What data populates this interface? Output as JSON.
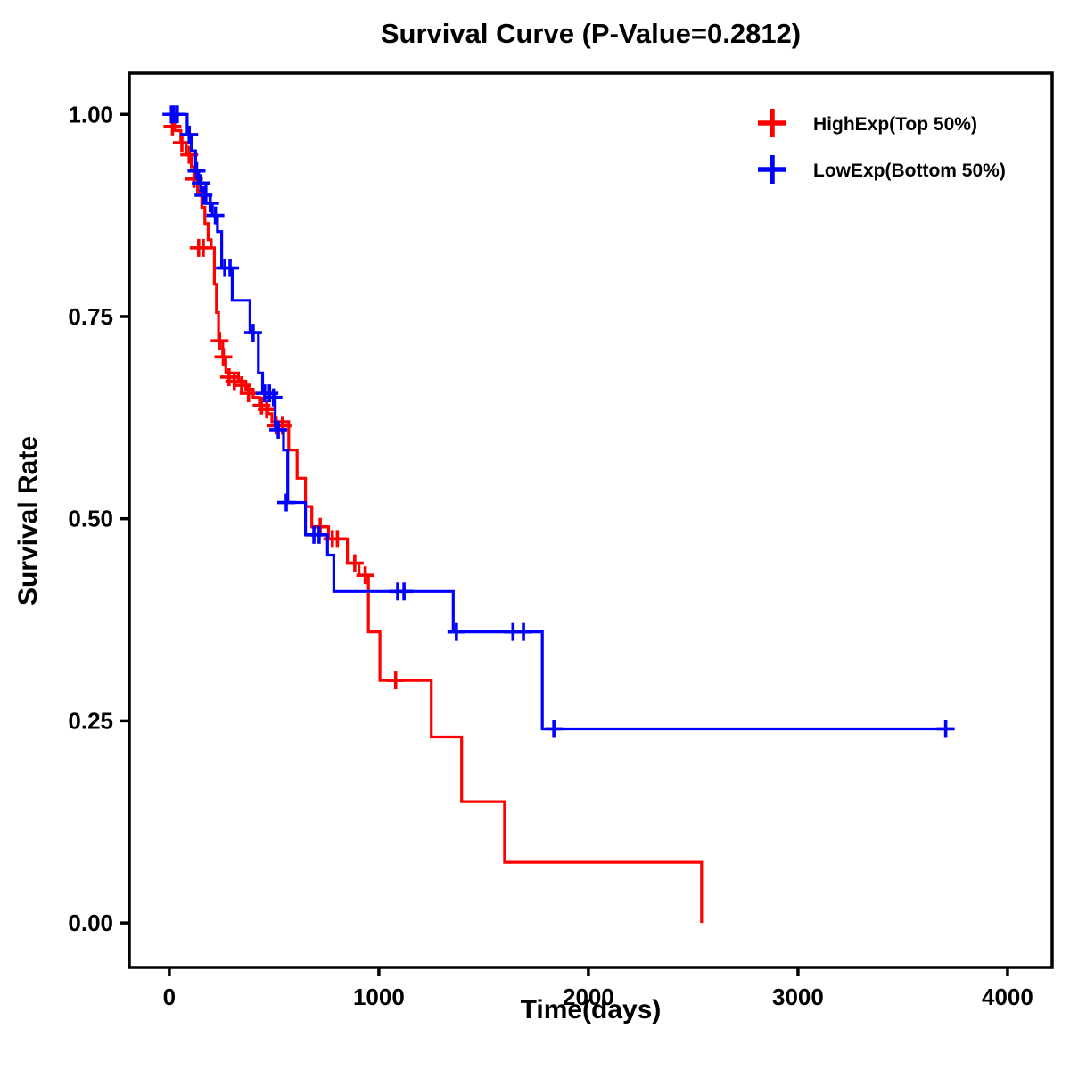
{
  "chart_data": {
    "type": "line",
    "subtype": "kaplan-meier-step",
    "title": "Survival Curve (P-Value=0.2812)",
    "xlabel": "Time(days)",
    "ylabel": "Survival Rate",
    "xlim": [
      -191,
      4213
    ],
    "ylim": [
      -0.055,
      1.051
    ],
    "xticks": [
      0,
      1000,
      2000,
      3000,
      4000
    ],
    "xtick_labels": [
      "0",
      "1000",
      "2000",
      "3000",
      "4000"
    ],
    "yticks": [
      0.0,
      0.25,
      0.5,
      0.75,
      1.0
    ],
    "ytick_labels": [
      "0.00",
      "0.25",
      "0.50",
      "0.75",
      "1.00"
    ],
    "grid": false,
    "legend": {
      "position": "top-right",
      "entries": [
        {
          "label": "HighExp(Top 50%)",
          "color": "#FF0000"
        },
        {
          "label": "LowExp(Bottom 50%)",
          "color": "#0000FF"
        }
      ]
    },
    "series": [
      {
        "name": "HighExp(Top 50%)",
        "color": "#FF0000",
        "steps": [
          [
            0,
            1.0
          ],
          [
            25,
            0.98
          ],
          [
            55,
            0.965
          ],
          [
            80,
            0.95
          ],
          [
            105,
            0.935
          ],
          [
            120,
            0.92
          ],
          [
            135,
            0.905
          ],
          [
            155,
            0.885
          ],
          [
            170,
            0.865
          ],
          [
            185,
            0.845
          ],
          [
            200,
            0.835
          ],
          [
            215,
            0.79
          ],
          [
            225,
            0.755
          ],
          [
            235,
            0.72
          ],
          [
            255,
            0.7
          ],
          [
            270,
            0.68
          ],
          [
            330,
            0.67
          ],
          [
            365,
            0.66
          ],
          [
            400,
            0.65
          ],
          [
            430,
            0.64
          ],
          [
            470,
            0.63
          ],
          [
            490,
            0.62
          ],
          [
            570,
            0.585
          ],
          [
            610,
            0.55
          ],
          [
            650,
            0.515
          ],
          [
            680,
            0.49
          ],
          [
            760,
            0.475
          ],
          [
            850,
            0.445
          ],
          [
            905,
            0.43
          ],
          [
            950,
            0.36
          ],
          [
            1005,
            0.3
          ],
          [
            1250,
            0.23
          ],
          [
            1395,
            0.15
          ],
          [
            1600,
            0.075
          ],
          [
            2540,
            0.0
          ]
        ],
        "censors": [
          [
            15,
            0.985
          ],
          [
            60,
            0.965
          ],
          [
            95,
            0.95
          ],
          [
            118,
            0.92
          ],
          [
            140,
            0.835
          ],
          [
            162,
            0.835
          ],
          [
            240,
            0.72
          ],
          [
            258,
            0.7
          ],
          [
            285,
            0.675
          ],
          [
            310,
            0.67
          ],
          [
            345,
            0.665
          ],
          [
            378,
            0.655
          ],
          [
            440,
            0.64
          ],
          [
            465,
            0.635
          ],
          [
            510,
            0.615
          ],
          [
            540,
            0.615
          ],
          [
            720,
            0.49
          ],
          [
            778,
            0.475
          ],
          [
            802,
            0.475
          ],
          [
            885,
            0.445
          ],
          [
            935,
            0.43
          ],
          [
            1080,
            0.3
          ]
        ]
      },
      {
        "name": "LowExp(Bottom 50%)",
        "color": "#0000FF",
        "steps": [
          [
            0,
            1.0
          ],
          [
            85,
            0.975
          ],
          [
            105,
            0.955
          ],
          [
            125,
            0.93
          ],
          [
            140,
            0.915
          ],
          [
            175,
            0.89
          ],
          [
            205,
            0.875
          ],
          [
            230,
            0.855
          ],
          [
            250,
            0.81
          ],
          [
            300,
            0.77
          ],
          [
            385,
            0.73
          ],
          [
            425,
            0.68
          ],
          [
            445,
            0.655
          ],
          [
            505,
            0.61
          ],
          [
            545,
            0.585
          ],
          [
            565,
            0.52
          ],
          [
            650,
            0.48
          ],
          [
            755,
            0.455
          ],
          [
            785,
            0.41
          ],
          [
            1355,
            0.36
          ],
          [
            1780,
            0.24
          ],
          [
            3720,
            0.24
          ]
        ],
        "censors": [
          [
            10,
            1.0
          ],
          [
            22,
            1.0
          ],
          [
            38,
            1.0
          ],
          [
            95,
            0.975
          ],
          [
            130,
            0.93
          ],
          [
            150,
            0.915
          ],
          [
            163,
            0.9
          ],
          [
            195,
            0.89
          ],
          [
            220,
            0.875
          ],
          [
            265,
            0.81
          ],
          [
            290,
            0.81
          ],
          [
            400,
            0.73
          ],
          [
            455,
            0.655
          ],
          [
            478,
            0.655
          ],
          [
            497,
            0.65
          ],
          [
            520,
            0.61
          ],
          [
            558,
            0.52
          ],
          [
            690,
            0.48
          ],
          [
            715,
            0.48
          ],
          [
            1090,
            0.41
          ],
          [
            1120,
            0.41
          ],
          [
            1370,
            0.36
          ],
          [
            1640,
            0.36
          ],
          [
            1690,
            0.36
          ],
          [
            1835,
            0.24
          ],
          [
            3705,
            0.24
          ]
        ]
      }
    ]
  }
}
